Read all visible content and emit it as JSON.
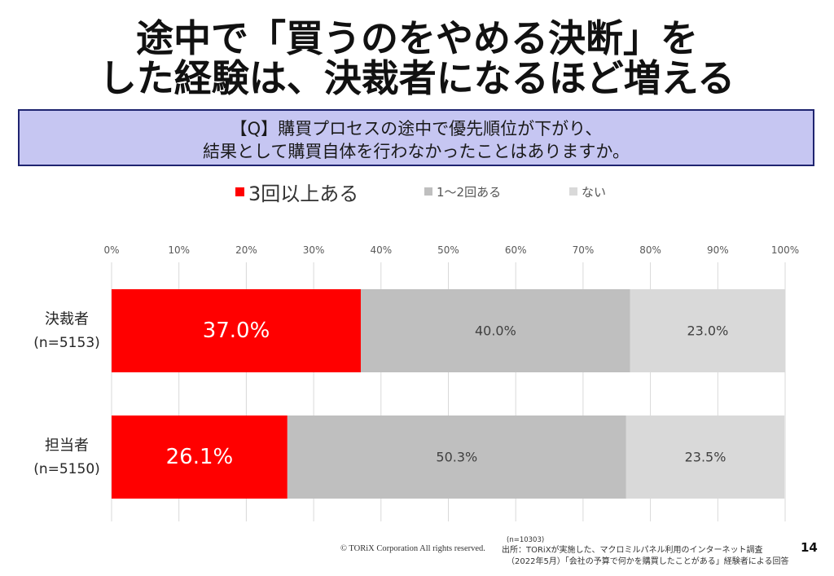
{
  "slide": {
    "title_lines": [
      "途中で「買うのをやめる決断」を",
      "した経験は、決裁者になるほど増える"
    ],
    "question_lines": [
      "【Q】購買プロセスの途中で優先順位が下がり、",
      "結果として購買自体を行わなかったことはありますか。"
    ],
    "footer": {
      "copyright": "© TORiX Corporation All rights reserved.",
      "sample_size": "(n=10303)",
      "source_line1": "出所：TORiXが実施した、マクロミルパネル利用のインターネット調査",
      "source_line2": "（2022年5月）「会社の予算で何かを購買したことがある」経験者による回答",
      "page_number": "14"
    },
    "colors": {
      "title": "#111111",
      "question_bg": "#c6c6f2",
      "question_border": "#1f2470"
    }
  },
  "chart_data": {
    "type": "bar",
    "orientation": "horizontal",
    "stacked": true,
    "categories": [
      "決裁者",
      "担当者"
    ],
    "category_sublabels": [
      "(n=5153)",
      "(n=5150)"
    ],
    "series": [
      {
        "name": "3回以上ある",
        "values": [
          37.0,
          26.1
        ],
        "labels": [
          "37.0%",
          "26.1%"
        ],
        "color": "#ff0000"
      },
      {
        "name": "1～2回ある",
        "values": [
          40.0,
          50.3
        ],
        "labels": [
          "40.0%",
          "50.3%"
        ],
        "color": "#bfbfbf"
      },
      {
        "name": "ない",
        "values": [
          23.0,
          23.5
        ],
        "labels": [
          "23.0%",
          "23.5%"
        ],
        "color": "#d9d9d9"
      }
    ],
    "xlim": [
      0,
      100
    ],
    "x_ticks": [
      0,
      10,
      20,
      30,
      40,
      50,
      60,
      70,
      80,
      90,
      100
    ],
    "x_tick_labels": [
      "0%",
      "10%",
      "20%",
      "30%",
      "40%",
      "50%",
      "60%",
      "70%",
      "80%",
      "90%",
      "100%"
    ],
    "x_axis_position": "top",
    "grid": true,
    "legend": "top"
  }
}
